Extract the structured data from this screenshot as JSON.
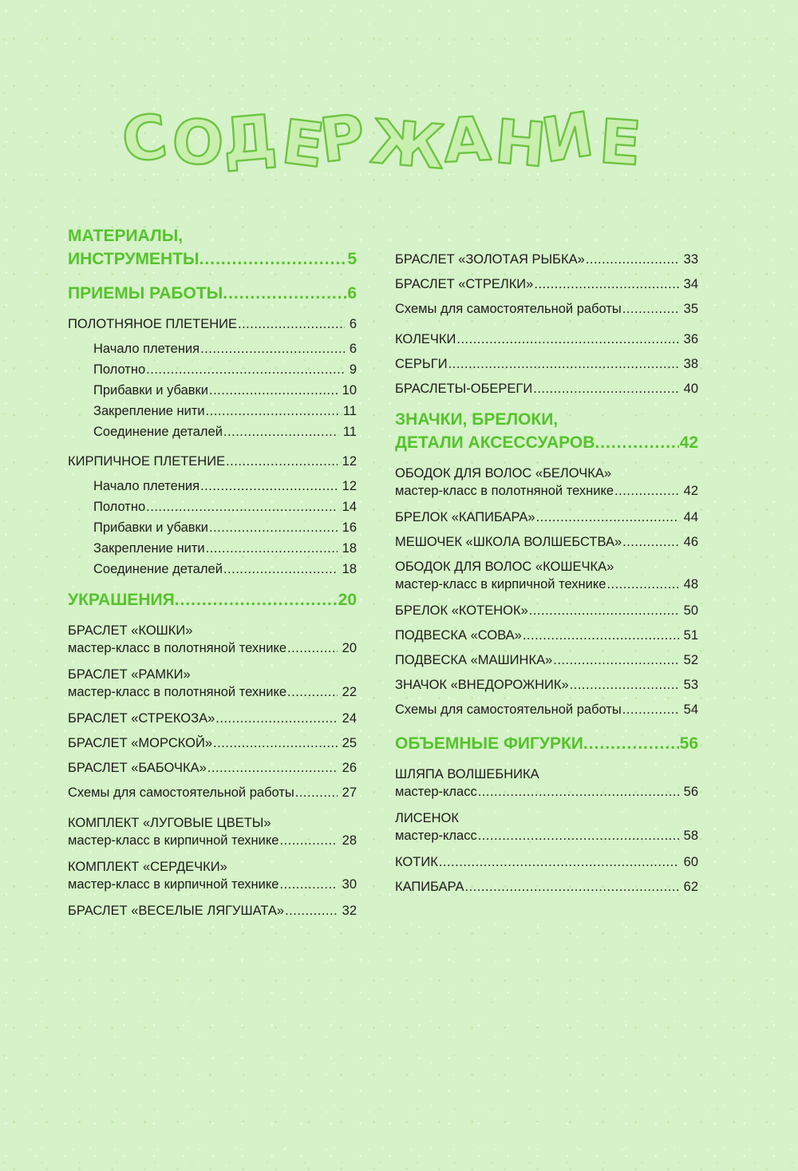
{
  "page": {
    "title": "СОДЕРЖАНИЕ"
  },
  "theme": {
    "background": "#d6f2c8",
    "accent_green": "#55c32d",
    "title_fill": "#c8efae",
    "title_stroke": "#6dc441",
    "text": "#1c1c1a"
  },
  "toc": {
    "left": [
      {
        "type": "section",
        "lines": [
          {
            "text": "МАТЕРИАЛЫ,"
          },
          {
            "text": "ИНСТРУМЕНТЫ",
            "page": "5"
          }
        ]
      },
      {
        "type": "section",
        "lines": [
          {
            "text": "ПРИЕМЫ РАБОТЫ",
            "page": "6"
          }
        ]
      },
      {
        "type": "entry",
        "lines": [
          {
            "text": "ПОЛОТНЯНОЕ ПЛЕТЕНИЕ ",
            "page": "6"
          }
        ]
      },
      {
        "type": "sub",
        "lines": [
          {
            "text": "Начало плетения",
            "page": "6"
          }
        ]
      },
      {
        "type": "sub",
        "lines": [
          {
            "text": "Полотно",
            "page": "9"
          }
        ]
      },
      {
        "type": "sub",
        "lines": [
          {
            "text": "Прибавки и убавки",
            "page": "10"
          }
        ]
      },
      {
        "type": "sub",
        "lines": [
          {
            "text": "Закрепление нити ",
            "page": "11"
          }
        ]
      },
      {
        "type": "sub",
        "lines": [
          {
            "text": "Соединение деталей ",
            "page": "11"
          }
        ]
      },
      {
        "type": "entry",
        "space_before": true,
        "lines": [
          {
            "text": "КИРПИЧНОЕ ПЛЕТЕНИЕ ",
            "page": "12"
          }
        ]
      },
      {
        "type": "sub",
        "lines": [
          {
            "text": "Начало плетения",
            "page": "12"
          }
        ]
      },
      {
        "type": "sub",
        "lines": [
          {
            "text": "Полотно",
            "page": "14"
          }
        ]
      },
      {
        "type": "sub",
        "lines": [
          {
            "text": "Прибавки и убавки",
            "page": "16"
          }
        ]
      },
      {
        "type": "sub",
        "lines": [
          {
            "text": "Закрепление нити ",
            "page": "18"
          }
        ]
      },
      {
        "type": "sub",
        "lines": [
          {
            "text": "Соединение деталей ",
            "page": "18"
          }
        ]
      },
      {
        "type": "section",
        "lines": [
          {
            "text": "УКРАШЕНИЯ ",
            "page": "20"
          }
        ]
      },
      {
        "type": "multi",
        "lines": [
          {
            "text": "БРАСЛЕТ «КОШКИ»"
          },
          {
            "text": "мастер-класс в полотняной технике",
            "page": "20"
          }
        ]
      },
      {
        "type": "multi",
        "lines": [
          {
            "text": "БРАСЛЕТ «РАМКИ»"
          },
          {
            "text": "мастер-класс в полотняной технике",
            "page": "22"
          }
        ]
      },
      {
        "type": "entry",
        "lines": [
          {
            "text": "БРАСЛЕТ «СТРЕКОЗА»",
            "page": "24"
          }
        ]
      },
      {
        "type": "entry",
        "lines": [
          {
            "text": "БРАСЛЕТ «МОРСКОЙ»",
            "page": "25"
          }
        ]
      },
      {
        "type": "entry",
        "lines": [
          {
            "text": "БРАСЛЕТ «БАБОЧКА» ",
            "page": "26"
          }
        ]
      },
      {
        "type": "plain",
        "lines": [
          {
            "text": "Схемы для самостоятельной работы",
            "page": "27"
          }
        ]
      },
      {
        "type": "multi",
        "lines": [
          {
            "text": "КОМПЛЕКТ «ЛУГОВЫЕ ЦВЕТЫ»"
          },
          {
            "text": "мастер-класс в кирпичной технике",
            "page": "28"
          }
        ]
      },
      {
        "type": "multi",
        "lines": [
          {
            "text": "КОМПЛЕКТ «СЕРДЕЧКИ»"
          },
          {
            "text": "мастер-класс в кирпичной технике",
            "page": "30"
          }
        ]
      },
      {
        "type": "entry",
        "lines": [
          {
            "text": "БРАСЛЕТ «ВЕСЕЛЫЕ ЛЯГУШАТА»",
            "page": "32"
          }
        ]
      }
    ],
    "right": [
      {
        "type": "entry",
        "lines": [
          {
            "text": "БРАСЛЕТ «ЗОЛОТАЯ РЫБКА» ",
            "page": "33"
          }
        ]
      },
      {
        "type": "entry",
        "lines": [
          {
            "text": "БРАСЛЕТ «СТРЕЛКИ»",
            "page": "34"
          }
        ]
      },
      {
        "type": "plain",
        "lines": [
          {
            "text": "Схемы для самостоятельной работы",
            "page": "35"
          }
        ]
      },
      {
        "type": "entry",
        "space_before": true,
        "lines": [
          {
            "text": "КОЛЕЧКИ",
            "page": "36"
          }
        ]
      },
      {
        "type": "entry",
        "lines": [
          {
            "text": "СЕРЬГИ ",
            "page": "38"
          }
        ]
      },
      {
        "type": "entry",
        "lines": [
          {
            "text": "БРАСЛЕТЫ-ОБЕРЕГИ",
            "page": "40"
          }
        ]
      },
      {
        "type": "section",
        "lines": [
          {
            "text": "ЗНАЧКИ, БРЕЛОКИ,"
          },
          {
            "text": "ДЕТАЛИ АКСЕССУАРОВ ",
            "page": "42"
          }
        ]
      },
      {
        "type": "multi",
        "lines": [
          {
            "text": "ОБОДОК ДЛЯ ВОЛОС «БЕЛОЧКА»"
          },
          {
            "text": "мастер-класс в полотняной технике",
            "page": "42"
          }
        ]
      },
      {
        "type": "entry",
        "lines": [
          {
            "text": "БРЕЛОК «КАПИБАРА» ",
            "page": "44"
          }
        ]
      },
      {
        "type": "entry",
        "lines": [
          {
            "text": "МЕШОЧЕК «ШКОЛА ВОЛШЕБСТВА» ",
            "page": "46"
          }
        ]
      },
      {
        "type": "multi",
        "lines": [
          {
            "text": "ОБОДОК ДЛЯ ВОЛОС «КОШЕЧКА»"
          },
          {
            "text": "мастер-класс в кирпичной технике",
            "page": "48"
          }
        ]
      },
      {
        "type": "entry",
        "lines": [
          {
            "text": "БРЕЛОК «КОТЕНОК» ",
            "page": "50"
          }
        ]
      },
      {
        "type": "entry",
        "lines": [
          {
            "text": "ПОДВЕСКА «СОВА» ",
            "page": "51"
          }
        ]
      },
      {
        "type": "entry",
        "lines": [
          {
            "text": "ПОДВЕСКА «МАШИНКА»",
            "page": "52"
          }
        ]
      },
      {
        "type": "entry",
        "lines": [
          {
            "text": "ЗНАЧОК «ВНЕДОРОЖНИК»",
            "page": "53"
          }
        ]
      },
      {
        "type": "plain",
        "lines": [
          {
            "text": "Схемы для самостоятельной работы",
            "page": "54"
          }
        ]
      },
      {
        "type": "section",
        "lines": [
          {
            "text": "ОБЪЕМНЫЕ ФИГУРКИ",
            "page": "56"
          }
        ]
      },
      {
        "type": "multi",
        "lines": [
          {
            "text": "ШЛЯПА ВОЛШЕБНИКА"
          },
          {
            "text": "мастер-класс",
            "page": "56"
          }
        ]
      },
      {
        "type": "multi",
        "lines": [
          {
            "text": "ЛИСЕНОК"
          },
          {
            "text": "мастер-класс",
            "page": "58"
          }
        ]
      },
      {
        "type": "entry",
        "lines": [
          {
            "text": "КОТИК",
            "page": "60"
          }
        ]
      },
      {
        "type": "entry",
        "lines": [
          {
            "text": "КАПИБАРА ",
            "page": "62"
          }
        ]
      }
    ]
  }
}
